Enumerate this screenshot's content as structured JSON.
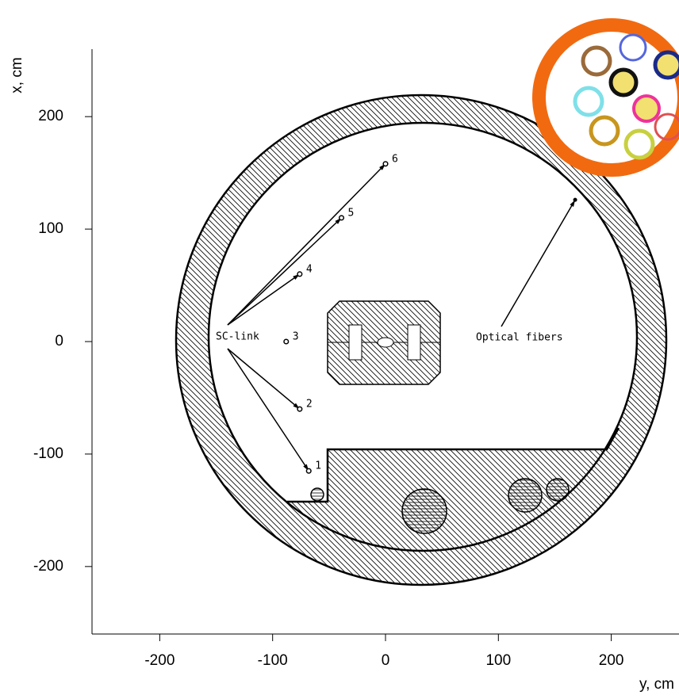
{
  "chart_data": {
    "type": "scatter",
    "xlabel": "y, cm",
    "ylabel": "x, cm",
    "xlim": [
      -260,
      260
    ],
    "ylim": [
      -260,
      260
    ],
    "xticks": [
      -200,
      -100,
      0,
      100,
      200
    ],
    "yticks": [
      -200,
      -100,
      0,
      100,
      200
    ],
    "series": [
      {
        "labels": [
          "1",
          "2",
          "3",
          "4",
          "5",
          "6"
        ],
        "x": [
          -68,
          -76,
          -88,
          -76,
          -39,
          0
        ],
        "y": [
          -115,
          -60,
          0,
          60,
          110,
          158
        ]
      }
    ],
    "annotations": [
      {
        "text": "SC-link"
      },
      {
        "text": "Optical fibers",
        "x": 168,
        "y": 126
      }
    ]
  }
}
